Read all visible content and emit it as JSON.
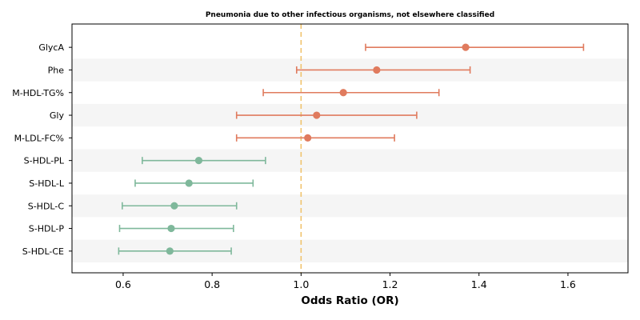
{
  "chart_data": {
    "type": "forest",
    "title": "Pneumonia due to other infectious organisms, not elsewhere classified",
    "xlabel": "Odds Ratio (OR)",
    "xlim": [
      0.485,
      1.735
    ],
    "xticks": [
      0.6,
      0.8,
      1.0,
      1.2,
      1.4,
      1.6
    ],
    "xtick_labels": [
      "0.6",
      "0.8",
      "1.0",
      "1.2",
      "1.4",
      "1.6"
    ],
    "reference_line": 1.0,
    "banded_rows": true,
    "colors": {
      "positive": "#e07b5e",
      "negative": "#7fb89b",
      "reference": "#f0c36d",
      "band": "#f5f5f5"
    },
    "rows": [
      {
        "label": "GlycA",
        "or": 1.37,
        "lower": 1.145,
        "upper": 1.635,
        "group": "positive"
      },
      {
        "label": "Phe",
        "or": 1.17,
        "lower": 0.99,
        "upper": 1.38,
        "group": "positive"
      },
      {
        "label": "M-HDL-TG%",
        "or": 1.095,
        "lower": 0.915,
        "upper": 1.31,
        "group": "positive"
      },
      {
        "label": "Gly",
        "or": 1.035,
        "lower": 0.855,
        "upper": 1.26,
        "group": "positive"
      },
      {
        "label": "M-LDL-FC%",
        "or": 1.015,
        "lower": 0.855,
        "upper": 1.21,
        "group": "positive"
      },
      {
        "label": "S-HDL-PL",
        "or": 0.77,
        "lower": 0.643,
        "upper": 0.92,
        "group": "negative"
      },
      {
        "label": "S-HDL-L",
        "or": 0.748,
        "lower": 0.627,
        "upper": 0.892,
        "group": "negative"
      },
      {
        "label": "S-HDL-C",
        "or": 0.715,
        "lower": 0.598,
        "upper": 0.855,
        "group": "negative"
      },
      {
        "label": "S-HDL-P",
        "or": 0.708,
        "lower": 0.592,
        "upper": 0.848,
        "group": "negative"
      },
      {
        "label": "S-HDL-CE",
        "or": 0.705,
        "lower": 0.59,
        "upper": 0.843,
        "group": "negative"
      }
    ]
  }
}
